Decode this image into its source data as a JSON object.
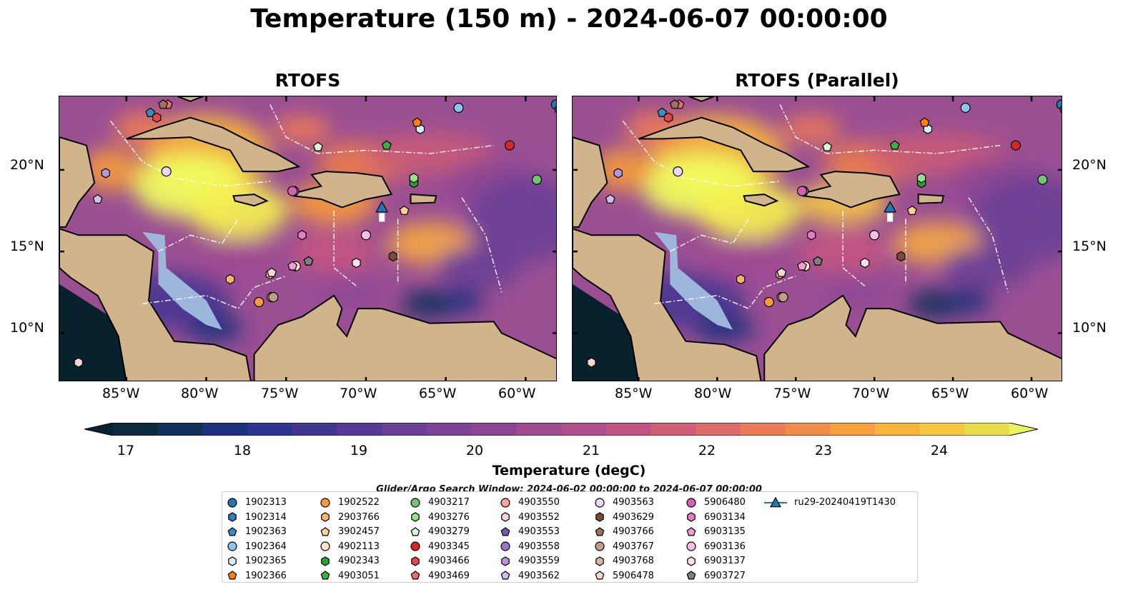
{
  "title": "Temperature (150 m) - 2024-06-07 00:00:00",
  "panels": [
    {
      "title": "RTOFS"
    },
    {
      "title": "RTOFS (Parallel)"
    }
  ],
  "axes": {
    "lon_ticks": [
      "85°W",
      "80°W",
      "75°W",
      "70°W",
      "65°W",
      "60°W"
    ],
    "lat_ticks": [
      "20°N",
      "15°N",
      "10°N"
    ]
  },
  "colorbar": {
    "label": "Temperature (degC)",
    "ticks": [
      "17",
      "18",
      "19",
      "20",
      "21",
      "22",
      "23",
      "24"
    ],
    "range": [
      16.5,
      24.5
    ],
    "extend": "both",
    "colors": [
      "#0b2a3c",
      "#10305a",
      "#1d327e",
      "#2e3591",
      "#40368f",
      "#553a95",
      "#6a3f96",
      "#7c4296",
      "#8e4695",
      "#a04a92",
      "#b14e8d",
      "#c25484",
      "#d15e79",
      "#de6a69",
      "#ea7a58",
      "#f28c49",
      "#f6a03e",
      "#f7b53c",
      "#f6c842",
      "#eadc49"
    ],
    "under_color": "#082131",
    "over_color": "#e9f55a"
  },
  "map_colors": {
    "land": "#d2b48c",
    "shelf": "#9fb6dc",
    "deep_ocean": "#07222d",
    "warm_core": "#f1ff5e"
  },
  "search_window": "Glider/Argo Search Window: 2024-06-02 00:00:00 to 2024-06-07 00:00:00",
  "legend": [
    {
      "id": "1902313",
      "shape": "circle",
      "color": "#1f77b4"
    },
    {
      "id": "1902314",
      "shape": "hexagon",
      "color": "#2c7fb8"
    },
    {
      "id": "1902363",
      "shape": "pentagon",
      "color": "#3a8ac4"
    },
    {
      "id": "1902364",
      "shape": "circle",
      "color": "#8fc3ea"
    },
    {
      "id": "1902365",
      "shape": "hexagon",
      "color": "#d6ecfb"
    },
    {
      "id": "1902366",
      "shape": "pentagon",
      "color": "#ff7f0e"
    },
    {
      "id": "1902522",
      "shape": "circle",
      "color": "#ff9a3c"
    },
    {
      "id": "2903766",
      "shape": "hexagon",
      "color": "#ffb26b"
    },
    {
      "id": "3902457",
      "shape": "pentagon",
      "color": "#ffcf99"
    },
    {
      "id": "4902113",
      "shape": "circle",
      "color": "#ffe3c7"
    },
    {
      "id": "4902343",
      "shape": "hexagon",
      "color": "#2ca02c"
    },
    {
      "id": "4903051",
      "shape": "pentagon",
      "color": "#3cb044"
    },
    {
      "id": "4903217",
      "shape": "circle",
      "color": "#74c476"
    },
    {
      "id": "4903276",
      "shape": "hexagon",
      "color": "#98df8a"
    },
    {
      "id": "4903279",
      "shape": "pentagon",
      "color": "#d9f5d3"
    },
    {
      "id": "4903345",
      "shape": "circle",
      "color": "#d62728"
    },
    {
      "id": "4903466",
      "shape": "hexagon",
      "color": "#e0474a"
    },
    {
      "id": "4903469",
      "shape": "pentagon",
      "color": "#ee6a6d"
    },
    {
      "id": "4903550",
      "shape": "circle",
      "color": "#f4a2a2"
    },
    {
      "id": "4903552",
      "shape": "hexagon",
      "color": "#fbd3d3"
    },
    {
      "id": "4903553",
      "shape": "pentagon",
      "color": "#7b56b3"
    },
    {
      "id": "4903558",
      "shape": "circle",
      "color": "#9a74c9"
    },
    {
      "id": "4903559",
      "shape": "hexagon",
      "color": "#b595db"
    },
    {
      "id": "4903562",
      "shape": "pentagon",
      "color": "#d2bdf0"
    },
    {
      "id": "4903563",
      "shape": "circle",
      "color": "#ead9fb"
    },
    {
      "id": "4903629",
      "shape": "hexagon",
      "color": "#7b4b3a"
    },
    {
      "id": "4903766",
      "shape": "pentagon",
      "color": "#a3705c"
    },
    {
      "id": "4903767",
      "shape": "circle",
      "color": "#c49c8b"
    },
    {
      "id": "4903768",
      "shape": "hexagon",
      "color": "#dcb5a3"
    },
    {
      "id": "5906478",
      "shape": "pentagon",
      "color": "#f6d9cf"
    },
    {
      "id": "5906480",
      "shape": "circle",
      "color": "#d062b0"
    },
    {
      "id": "6903134",
      "shape": "hexagon",
      "color": "#e77cc4"
    },
    {
      "id": "6903135",
      "shape": "pentagon",
      "color": "#f29bd5"
    },
    {
      "id": "6903136",
      "shape": "circle",
      "color": "#f8bfe4"
    },
    {
      "id": "6903137",
      "shape": "hexagon",
      "color": "#fde0f2"
    },
    {
      "id": "6903727",
      "shape": "pentagon",
      "color": "#7f7f7f"
    },
    {
      "id": "ru29-20240419T1430",
      "shape": "triangle",
      "color": "#1f77b4"
    }
  ],
  "floats": [
    {
      "id": "1902313",
      "lon": -58.1,
      "lat": 24.0
    },
    {
      "id": "1902314",
      "lon": -57.9,
      "lat": 23.7
    },
    {
      "id": "1902363",
      "lon": -83.5,
      "lat": 23.5
    },
    {
      "id": "1902364",
      "lon": -64.2,
      "lat": 23.8
    },
    {
      "id": "1902365",
      "lon": -66.6,
      "lat": 22.5
    },
    {
      "id": "1902366",
      "lon": -66.8,
      "lat": 22.9
    },
    {
      "id": "1902522",
      "lon": -76.7,
      "lat": 11.9
    },
    {
      "id": "2903766",
      "lon": -78.5,
      "lat": 13.3
    },
    {
      "id": "3902457",
      "lon": -67.6,
      "lat": 17.5
    },
    {
      "id": "4902113",
      "lon": -74.4,
      "lat": 14.1
    },
    {
      "id": "4902343",
      "lon": -67.0,
      "lat": 19.2
    },
    {
      "id": "4903051",
      "lon": -68.7,
      "lat": 21.5
    },
    {
      "id": "4903217",
      "lon": -59.3,
      "lat": 19.4
    },
    {
      "id": "4903276",
      "lon": -67.0,
      "lat": 19.5
    },
    {
      "id": "4903279",
      "lon": -73.0,
      "lat": 21.4
    },
    {
      "id": "4903345",
      "lon": -61.0,
      "lat": 21.5
    },
    {
      "id": "4903466",
      "lon": -83.1,
      "lat": 23.2
    },
    {
      "id": "4903469",
      "lon": -82.4,
      "lat": 24.0
    },
    {
      "id": "4903550",
      "lon": -75.9,
      "lat": 12.2
    },
    {
      "id": "4903552",
      "lon": -88.0,
      "lat": 8.2
    },
    {
      "id": "4903553",
      "lon": -73.6,
      "lat": 14.4
    },
    {
      "id": "4903558",
      "lon": -74.5,
      "lat": 18.7
    },
    {
      "id": "4903559",
      "lon": -86.3,
      "lat": 19.8
    },
    {
      "id": "4903562",
      "lon": -86.8,
      "lat": 18.2
    },
    {
      "id": "4903563",
      "lon": -82.5,
      "lat": 19.9
    },
    {
      "id": "4903629",
      "lon": -68.3,
      "lat": 14.7
    },
    {
      "id": "4903766",
      "lon": -82.7,
      "lat": 24.0
    },
    {
      "id": "4903767",
      "lon": -75.8,
      "lat": 12.2
    },
    {
      "id": "4903768",
      "lon": -76.0,
      "lat": 13.6
    },
    {
      "id": "5906478",
      "lon": -75.9,
      "lat": 13.7
    },
    {
      "id": "5906480",
      "lon": -74.6,
      "lat": 18.7
    },
    {
      "id": "6903134",
      "lon": -74.0,
      "lat": 16.0
    },
    {
      "id": "6903135",
      "lon": -74.6,
      "lat": 14.1
    },
    {
      "id": "6903136",
      "lon": -70.0,
      "lat": 16.0
    },
    {
      "id": "6903137",
      "lon": -70.6,
      "lat": 14.3
    },
    {
      "id": "6903727",
      "lon": -73.6,
      "lat": 14.4
    }
  ],
  "glider": {
    "id": "ru29-20240419T1430",
    "lon": -69.0,
    "lat": 17.7
  }
}
